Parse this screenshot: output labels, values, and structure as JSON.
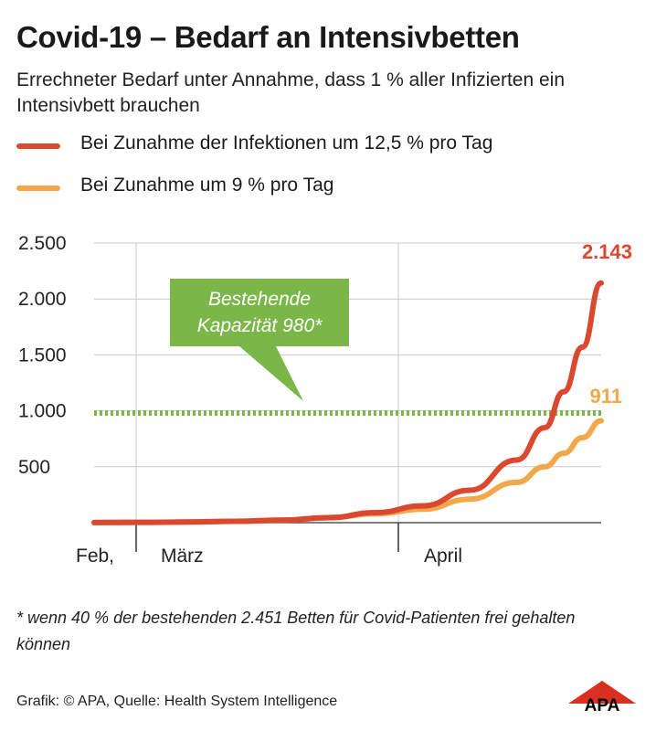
{
  "title": "Covid-19 – Bedarf an Intensivbetten",
  "subtitle": "Errechneter Bedarf unter Annahme, dass 1 % aller Infizierten ein Intensivbett brauchen",
  "legend": [
    {
      "label": "Bei Zunahme der Infektionen um 12,5 % pro Tag",
      "color": "#d9482f"
    },
    {
      "label": "Bei Zunahme um 9 % pro Tag",
      "color": "#f2a84a"
    }
  ],
  "chart_data": {
    "type": "line",
    "x_tick_labels": [
      "Feb,",
      "März",
      "April"
    ],
    "y_ticks": [
      500,
      1000,
      1500,
      2000,
      2500
    ],
    "y_tick_labels": [
      "500",
      "1.000",
      "1.500",
      "2.000",
      "2.500"
    ],
    "ylim": [
      0,
      2500
    ],
    "grid": true,
    "series": [
      {
        "name": "Bei Zunahme der Infektionen um 12,5 % pro Tag",
        "color": "#d9482f",
        "x": [
          0,
          5,
          10,
          15,
          20,
          25,
          30,
          35,
          40,
          45,
          48,
          50,
          52,
          54
        ],
        "values": [
          1,
          3,
          6,
          12,
          22,
          45,
          90,
          150,
          290,
          560,
          850,
          1170,
          1570,
          2143
        ],
        "end_label": "2.143"
      },
      {
        "name": "Bei Zunahme um 9 % pro Tag",
        "color": "#f2a84a",
        "x": [
          0,
          5,
          10,
          15,
          20,
          25,
          30,
          35,
          40,
          45,
          48,
          50,
          52,
          54
        ],
        "values": [
          1,
          3,
          6,
          12,
          22,
          45,
          80,
          120,
          210,
          360,
          500,
          620,
          760,
          911
        ],
        "end_label": "911"
      }
    ],
    "reference_line": {
      "value": 980,
      "color": "#7ab648",
      "style": "dotted"
    },
    "annotation": {
      "lines": [
        "Bestehende",
        "Kapazität 980*"
      ],
      "color": "#7ab648"
    }
  },
  "footnote": "* wenn 40 % der bestehenden 2.451 Betten für Covid-Patienten frei gehalten können",
  "source": "Grafik: © APA, Quelle: Health System Intelligence",
  "logo_text": "APA"
}
